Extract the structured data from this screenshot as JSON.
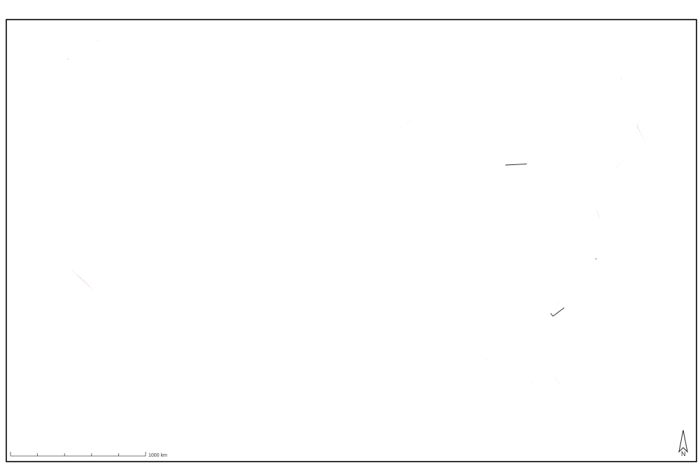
{
  "map": {
    "scale_bar": {
      "label": "1000 km",
      "ticks": 5
    },
    "north_arrow": {
      "label": "N"
    },
    "colors": {
      "frame": "#000000",
      "background": "#ffffff",
      "state_border": "#222222",
      "coastline": "#111111",
      "gray_points": "#a6a6a6",
      "red_points": "#a50f15"
    },
    "point_categories": [
      {
        "id": "gray",
        "color": "#a6a6a6"
      },
      {
        "id": "red",
        "color": "#a50f15"
      }
    ]
  }
}
